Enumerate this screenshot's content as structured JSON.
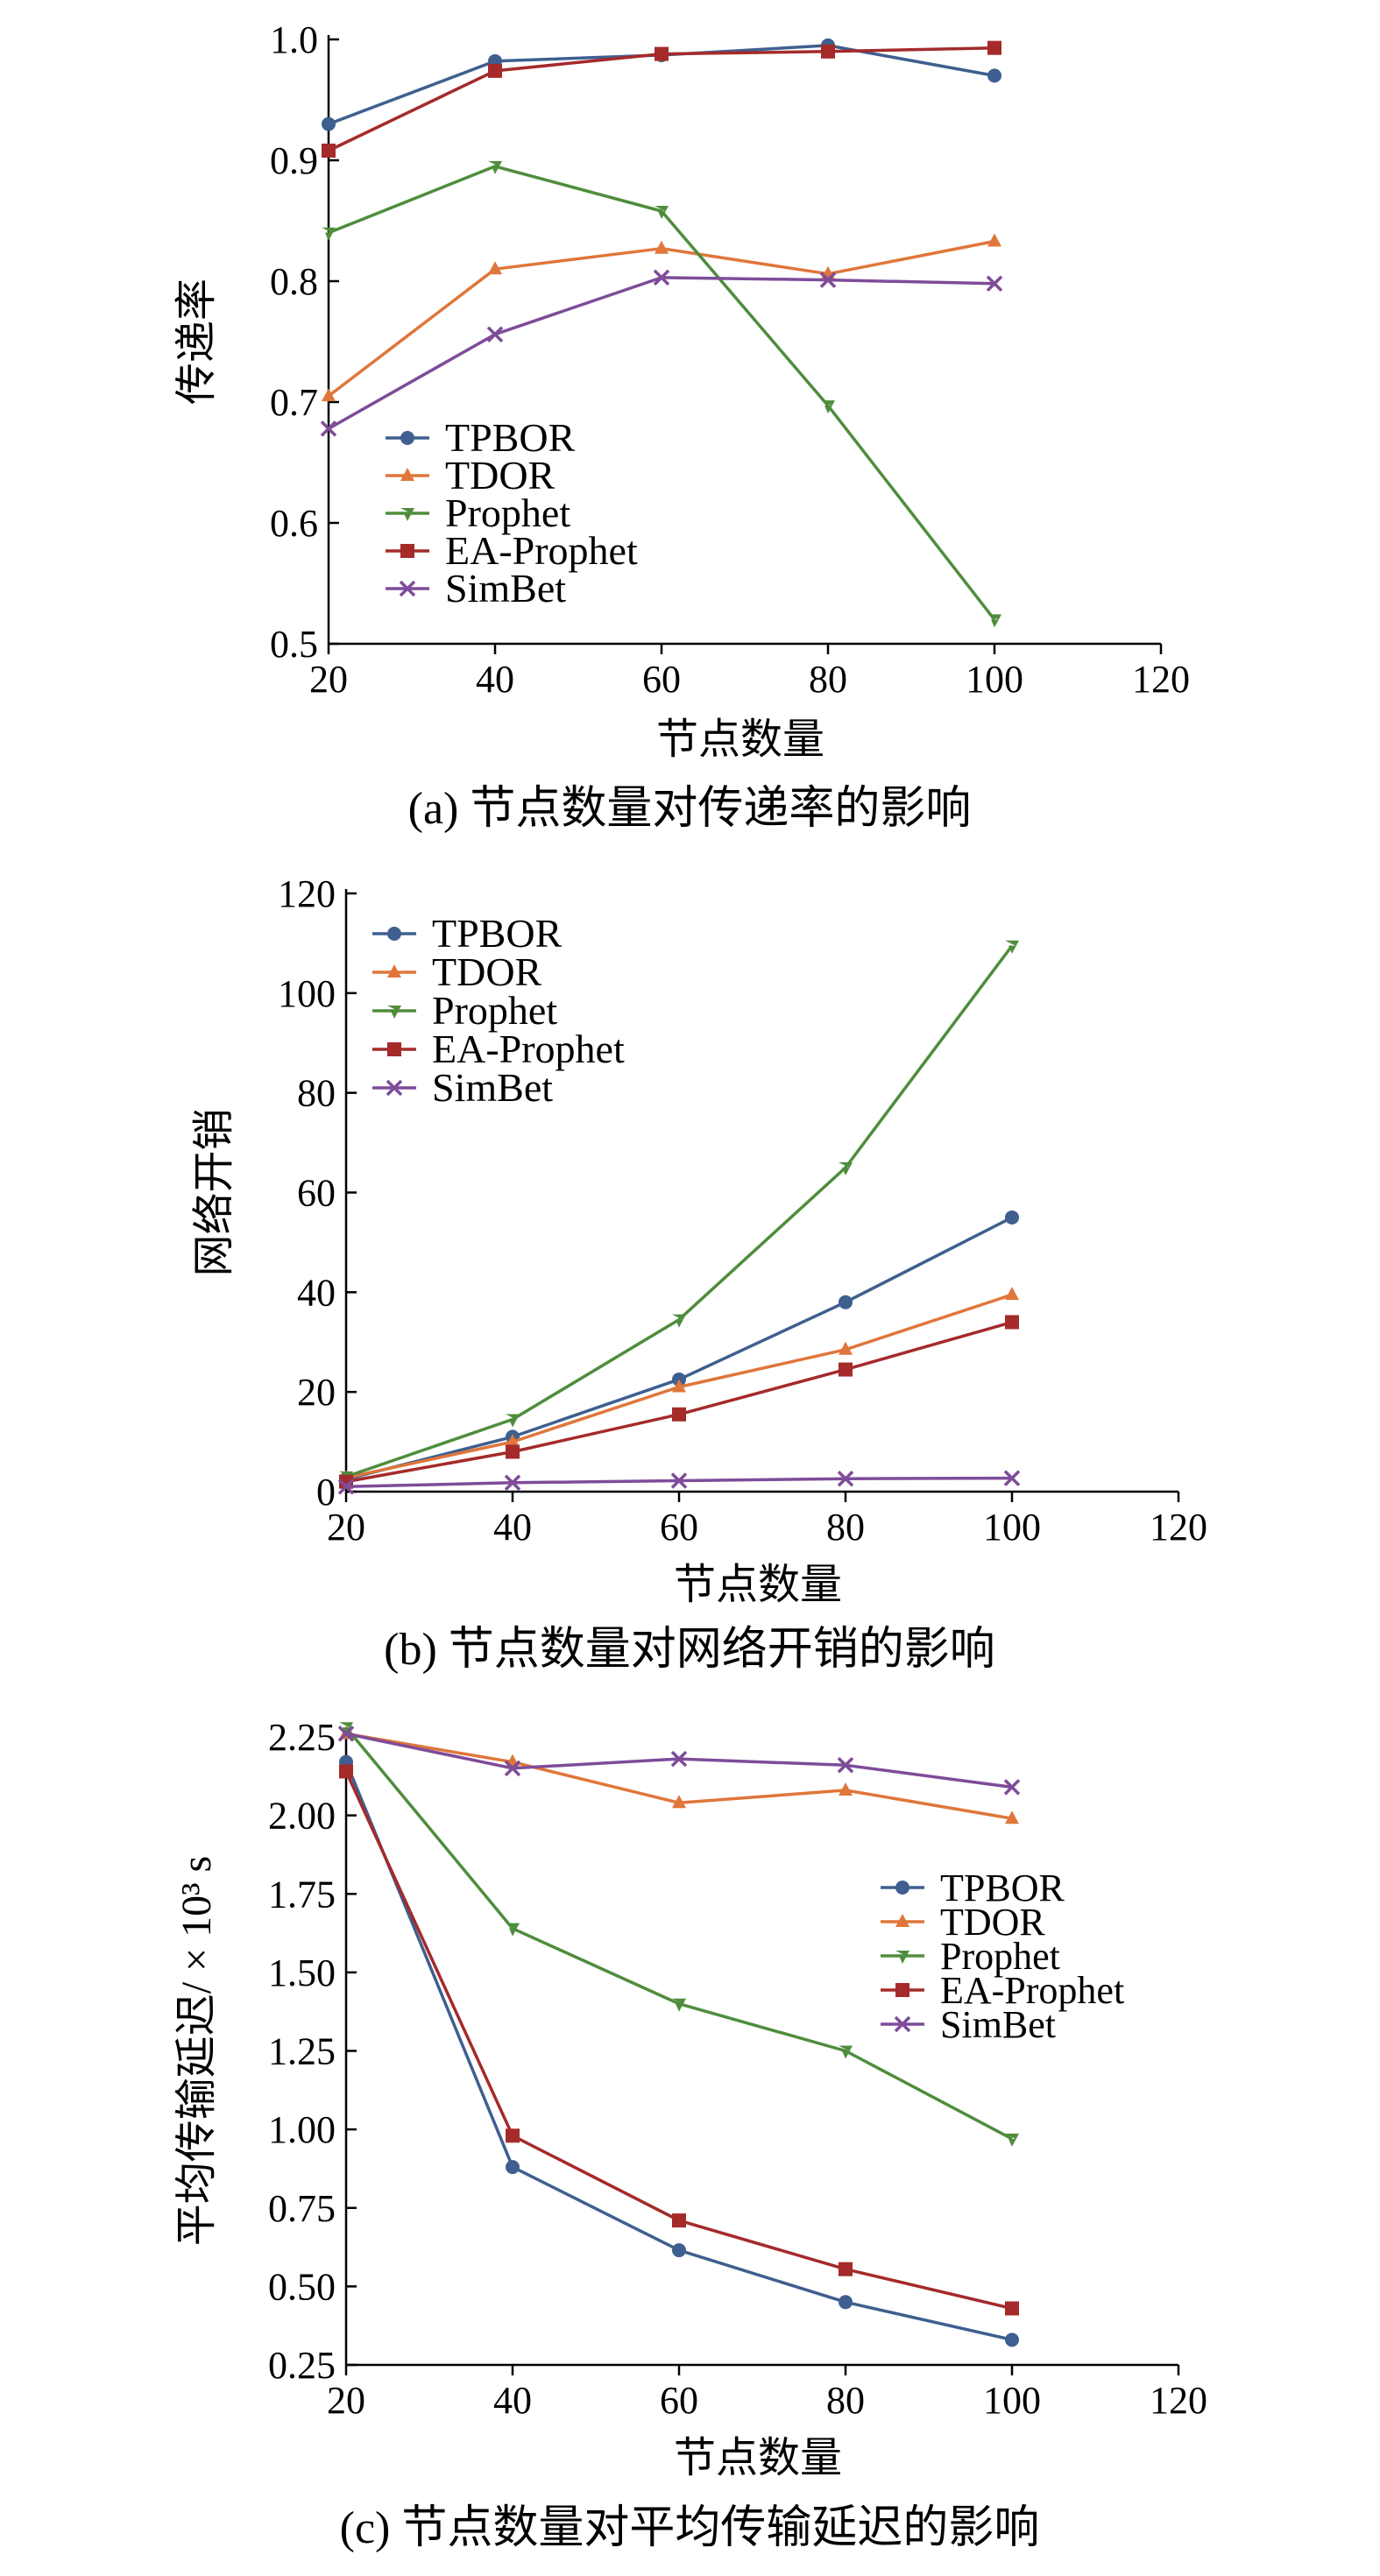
{
  "colors": {
    "TPBOR": "#3e5f8f",
    "TDOR": "#e0763a",
    "Prophet": "#4e8d3c",
    "EA-Prophet": "#a52a2a",
    "SimBet": "#7e4c99"
  },
  "chart_data": [
    {
      "type": "line",
      "caption": "(a) 节点数量对传递率的影响",
      "xlabel": "节点数量",
      "ylabel": "传递率",
      "xlim": [
        20,
        120
      ],
      "ylim": [
        0.5,
        1.0
      ],
      "xticks": [
        "20",
        "40",
        "60",
        "80",
        "100",
        "120"
      ],
      "yticks": [
        "0.5",
        "0.6",
        "0.7",
        "0.8",
        "0.9",
        "1.0"
      ],
      "x": [
        20,
        40,
        60,
        80,
        100
      ],
      "legend_position": "bottom-left",
      "series": [
        {
          "name": "TPBOR",
          "marker": "circle",
          "values": [
            0.93,
            0.982,
            0.987,
            0.995,
            0.97
          ]
        },
        {
          "name": "TDOR",
          "marker": "triangle",
          "values": [
            0.705,
            0.81,
            0.827,
            0.806,
            0.833
          ]
        },
        {
          "name": "Prophet",
          "marker": "triangle-down",
          "values": [
            0.84,
            0.895,
            0.858,
            0.697,
            0.52
          ]
        },
        {
          "name": "EA-Prophet",
          "marker": "square",
          "values": [
            0.908,
            0.974,
            0.988,
            0.99,
            0.993
          ]
        },
        {
          "name": "SimBet",
          "marker": "x",
          "values": [
            0.678,
            0.756,
            0.803,
            0.801,
            0.798
          ]
        }
      ]
    },
    {
      "type": "line",
      "caption": "(b) 节点数量对网络开销的影响",
      "xlabel": "节点数量",
      "ylabel": "网络开销",
      "xlim": [
        20,
        120
      ],
      "ylim": [
        0,
        120
      ],
      "xticks": [
        "20",
        "40",
        "60",
        "80",
        "100",
        "120"
      ],
      "yticks": [
        "0",
        "20",
        "40",
        "60",
        "80",
        "100",
        "120"
      ],
      "x": [
        20,
        40,
        60,
        80,
        100
      ],
      "legend_position": "top-left",
      "series": [
        {
          "name": "TPBOR",
          "marker": "circle",
          "values": [
            2.5,
            11,
            22.5,
            38,
            55
          ]
        },
        {
          "name": "TDOR",
          "marker": "triangle",
          "values": [
            2.8,
            10,
            21,
            28.5,
            39.5
          ]
        },
        {
          "name": "Prophet",
          "marker": "triangle-down",
          "values": [
            3,
            14.5,
            34.5,
            65,
            109.5
          ]
        },
        {
          "name": "EA-Prophet",
          "marker": "square",
          "values": [
            2,
            8,
            15.5,
            24.5,
            34
          ]
        },
        {
          "name": "SimBet",
          "marker": "x",
          "values": [
            1,
            1.8,
            2.2,
            2.6,
            2.7
          ]
        }
      ]
    },
    {
      "type": "line",
      "caption": "(c) 节点数量对平均传输延迟的影响",
      "xlabel": "节点数量",
      "ylabel": "平均传输延迟/ × 10³ s",
      "xlim": [
        20,
        120
      ],
      "ylim": [
        0.25,
        2.25
      ],
      "xticks": [
        "20",
        "40",
        "60",
        "80",
        "100",
        "120"
      ],
      "yticks": [
        "0.25",
        "0.50",
        "0.75",
        "1.00",
        "1.25",
        "1.50",
        "1.75",
        "2.00",
        "2.25"
      ],
      "x": [
        20,
        40,
        60,
        80,
        100
      ],
      "legend_position": "right-middle",
      "series": [
        {
          "name": "TPBOR",
          "marker": "circle",
          "values": [
            2.17,
            0.88,
            0.615,
            0.45,
            0.33
          ]
        },
        {
          "name": "TDOR",
          "marker": "triangle",
          "values": [
            2.26,
            2.17,
            2.04,
            2.08,
            1.99
          ]
        },
        {
          "name": "Prophet",
          "marker": "triangle-down",
          "values": [
            2.28,
            1.64,
            1.4,
            1.25,
            0.97
          ]
        },
        {
          "name": "EA-Prophet",
          "marker": "square",
          "values": [
            2.14,
            0.98,
            0.71,
            0.555,
            0.43
          ]
        },
        {
          "name": "SimBet",
          "marker": "x",
          "values": [
            2.26,
            2.15,
            2.18,
            2.16,
            2.09
          ]
        }
      ]
    }
  ]
}
